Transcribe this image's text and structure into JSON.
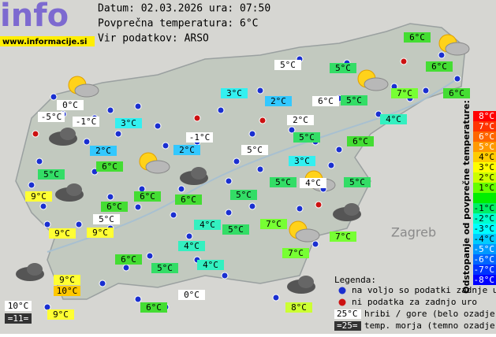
{
  "header": {
    "logo": "info",
    "url": "www.informacije.si",
    "date_line": "Datum: 02.03.2026 ura: 07:50",
    "avg_line": "Povprečna temperatura: 6°C",
    "source_line": "Vir podatkov: ARSO"
  },
  "map": {
    "places": [
      "Zagreb"
    ],
    "stations": [
      "6°C",
      "5°C",
      "6°C",
      "5°C",
      "3°C",
      "7°C",
      "6°C",
      "2°C",
      "6°C",
      "5°C",
      "0°C",
      "-5°C",
      "-1°C",
      "2°C",
      "3°C",
      "4°C",
      "-1°C",
      "5°C",
      "6°C",
      "2°C",
      "2°C",
      "5°C",
      "3°C",
      "6°C",
      "5°C",
      "5°C",
      "4°C",
      "5°C",
      "9°C",
      "6°C",
      "6°C",
      "5°C",
      "6°C",
      "5°C",
      "7°C",
      "4°C",
      "5°C",
      "9°C",
      "9°C",
      "7°C",
      "4°C",
      "7°C",
      "6°C",
      "4°C",
      "5°C",
      "9°C",
      "10°C",
      "0°C",
      "10°C",
      "8°C",
      "6°C",
      "9°C",
      "=11="
    ]
  },
  "scale": {
    "title": "Odstopanje od povprečne temperature:",
    "labels": [
      "8°C",
      "7°C",
      "6°C",
      "5°C",
      "4°C",
      "3°C",
      "2°C",
      "1°C",
      null,
      "-1°C",
      "-2°C",
      "-3°C",
      "-4°C",
      "-5°C",
      "-6°C",
      "-7°C",
      "-8°C"
    ]
  },
  "legend": {
    "title": "Legenda:",
    "blue_dot": "na voljo so podatki zadnje ure",
    "red_dot": "ni podatka za zadnjo uro",
    "mountain_sample": "25°C",
    "mountain_text": "hribi / gore (belo ozadje)",
    "sea_sample": "=25=",
    "sea_text": "temp. morja (temno ozadje)"
  }
}
